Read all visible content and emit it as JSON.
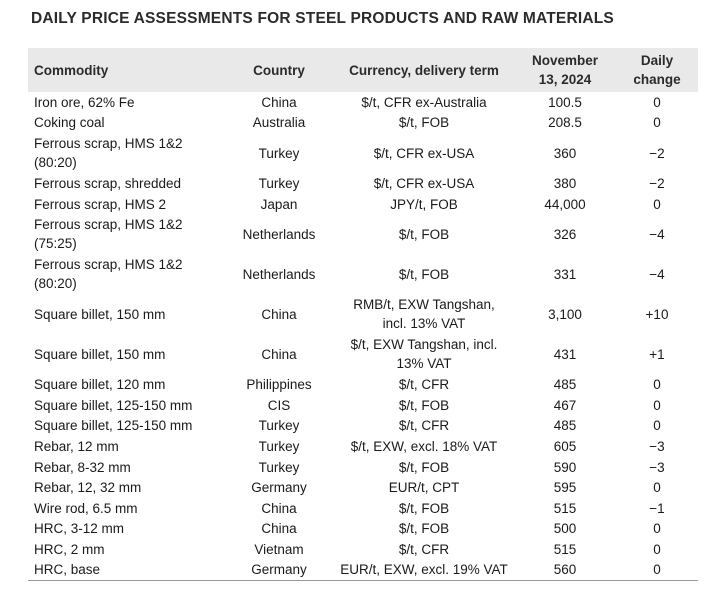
{
  "title": "DAILY PRICE ASSESSMENTS FOR STEEL PRODUCTS AND RAW MATERIALS",
  "headers": {
    "commodity": "Commodity",
    "country": "Country",
    "currency": "Currency, delivery term",
    "date_line1": "November",
    "date_line2": "13, 2024",
    "change_line1": "Daily",
    "change_line2": "change"
  },
  "rows": [
    {
      "commodity": [
        "Iron ore, 62% Fe"
      ],
      "country": "China",
      "currency": [
        "$/t, CFR ex-Australia"
      ],
      "price": "100.5",
      "change": "0"
    },
    {
      "commodity": [
        "Coking coal"
      ],
      "country": "Australia",
      "currency": [
        "$/t, FOB"
      ],
      "price": "208.5",
      "change": "0"
    },
    {
      "commodity": [
        "Ferrous scrap, HMS 1&2",
        "(80:20)"
      ],
      "country": "Turkey",
      "currency": [
        "$/t, CFR ex-USA"
      ],
      "price": "360",
      "change": "−2"
    },
    {
      "commodity": [
        "Ferrous scrap, shredded"
      ],
      "country": "Turkey",
      "currency": [
        "$/t, CFR ex-USA"
      ],
      "price": "380",
      "change": "−2"
    },
    {
      "commodity": [
        "Ferrous scrap, HMS 2"
      ],
      "country": "Japan",
      "currency": [
        "JPY/t, FOB"
      ],
      "price": "44,000",
      "change": "0"
    },
    {
      "commodity": [
        "Ferrous scrap, HMS 1&2",
        "(75:25)"
      ],
      "country": "Netherlands",
      "currency": [
        "$/t, FOB"
      ],
      "price": "326",
      "change": "−4"
    },
    {
      "commodity": [
        "Ferrous scrap, HMS 1&2",
        "(80:20)"
      ],
      "country": "Netherlands",
      "currency": [
        "$/t, FOB"
      ],
      "price": "331",
      "change": "−4"
    },
    {
      "commodity": [
        "Square billet, 150 mm"
      ],
      "country": "China",
      "currency": [
        "RMB/t, EXW Tangshan,",
        "incl. 13% VAT"
      ],
      "price": "3,100",
      "change": "+10"
    },
    {
      "commodity": [
        "Square billet, 150 mm"
      ],
      "country": "China",
      "currency": [
        "$/t, EXW Tangshan, incl.",
        "13% VAT"
      ],
      "price": "431",
      "change": "+1"
    },
    {
      "commodity": [
        "Square billet, 120 mm"
      ],
      "country": "Philippines",
      "currency": [
        "$/t, CFR"
      ],
      "price": "485",
      "change": "0"
    },
    {
      "commodity": [
        "Square billet, 125-150 mm"
      ],
      "country": "CIS",
      "currency": [
        "$/t, FOB"
      ],
      "price": "467",
      "change": "0"
    },
    {
      "commodity": [
        "Square billet, 125-150 mm"
      ],
      "country": "Turkey",
      "currency": [
        "$/t, CFR"
      ],
      "price": "485",
      "change": "0"
    },
    {
      "commodity": [
        "Rebar, 12 mm"
      ],
      "country": "Turkey",
      "currency": [
        "$/t, EXW, excl. 18% VAT"
      ],
      "price": "605",
      "change": "−3"
    },
    {
      "commodity": [
        "Rebar, 8-32 mm"
      ],
      "country": "Turkey",
      "currency": [
        "$/t, FOB"
      ],
      "price": "590",
      "change": "−3"
    },
    {
      "commodity": [
        "Rebar, 12, 32 mm"
      ],
      "country": "Germany",
      "currency": [
        "EUR/t, CPT"
      ],
      "price": "595",
      "change": "0"
    },
    {
      "commodity": [
        "Wire rod, 6.5 mm"
      ],
      "country": "China",
      "currency": [
        "$/t, FOB"
      ],
      "price": "515",
      "change": "−1"
    },
    {
      "commodity": [
        "HRC, 3-12 mm"
      ],
      "country": "China",
      "currency": [
        "$/t, FOB"
      ],
      "price": "500",
      "change": "0"
    },
    {
      "commodity": [
        "HRC, 2 mm"
      ],
      "country": "Vietnam",
      "currency": [
        "$/t, CFR"
      ],
      "price": "515",
      "change": "0"
    },
    {
      "commodity": [
        "HRC, base"
      ],
      "country": "Germany",
      "currency": [
        "EUR/t, EXW, excl. 19% VAT"
      ],
      "price": "560",
      "change": "0"
    }
  ]
}
